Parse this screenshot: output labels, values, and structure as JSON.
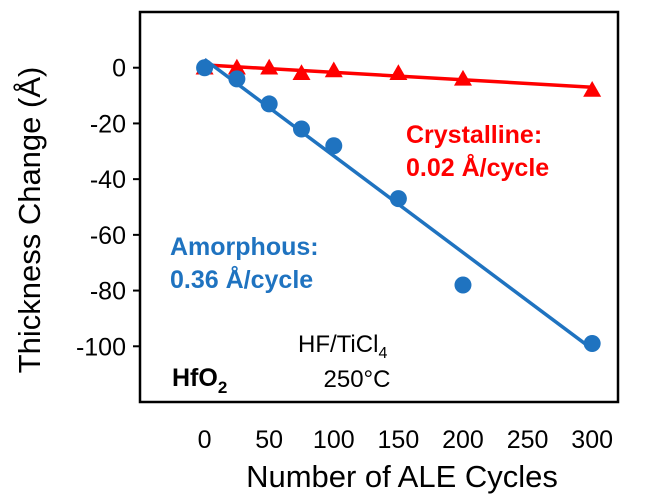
{
  "chart_data": {
    "type": "scatter",
    "xlabel": "Number of ALE Cycles",
    "ylabel": "Thickness Change (Å)",
    "xlim": [
      -50,
      320
    ],
    "ylim": [
      -120,
      20
    ],
    "xticks": [
      0,
      50,
      100,
      150,
      200,
      250,
      300
    ],
    "yticks": [
      0,
      -20,
      -40,
      -60,
      -80,
      -100
    ],
    "grid": false,
    "series": [
      {
        "name": "Crystalline",
        "marker": "triangle",
        "color": "#ff0000",
        "x": [
          0,
          25,
          50,
          75,
          100,
          150,
          200,
          300
        ],
        "y": [
          0,
          0,
          0,
          -2,
          -1,
          -2,
          -4,
          -8
        ],
        "fit": {
          "x": [
            0,
            300
          ],
          "y": [
            1,
            -7
          ]
        }
      },
      {
        "name": "Amorphous",
        "marker": "circle",
        "color": "#1f73c0",
        "x": [
          0,
          25,
          50,
          75,
          100,
          150,
          200,
          300
        ],
        "y": [
          0,
          -4,
          -13,
          -22,
          -28,
          -47,
          -78,
          -99
        ],
        "fit": {
          "x": [
            0,
            300
          ],
          "y": [
            3,
            -101
          ]
        }
      }
    ],
    "annotations": {
      "crystalline_name": "Crystalline:",
      "crystalline_rate": "0.02 Å/cycle",
      "amorphous_name": "Amorphous:",
      "amorphous_rate": "0.36 Å/cycle",
      "material_base": "HfO",
      "material_sub": "2",
      "process_base": "HF/TiCl",
      "process_sub": "4",
      "temperature": "250°C"
    }
  }
}
